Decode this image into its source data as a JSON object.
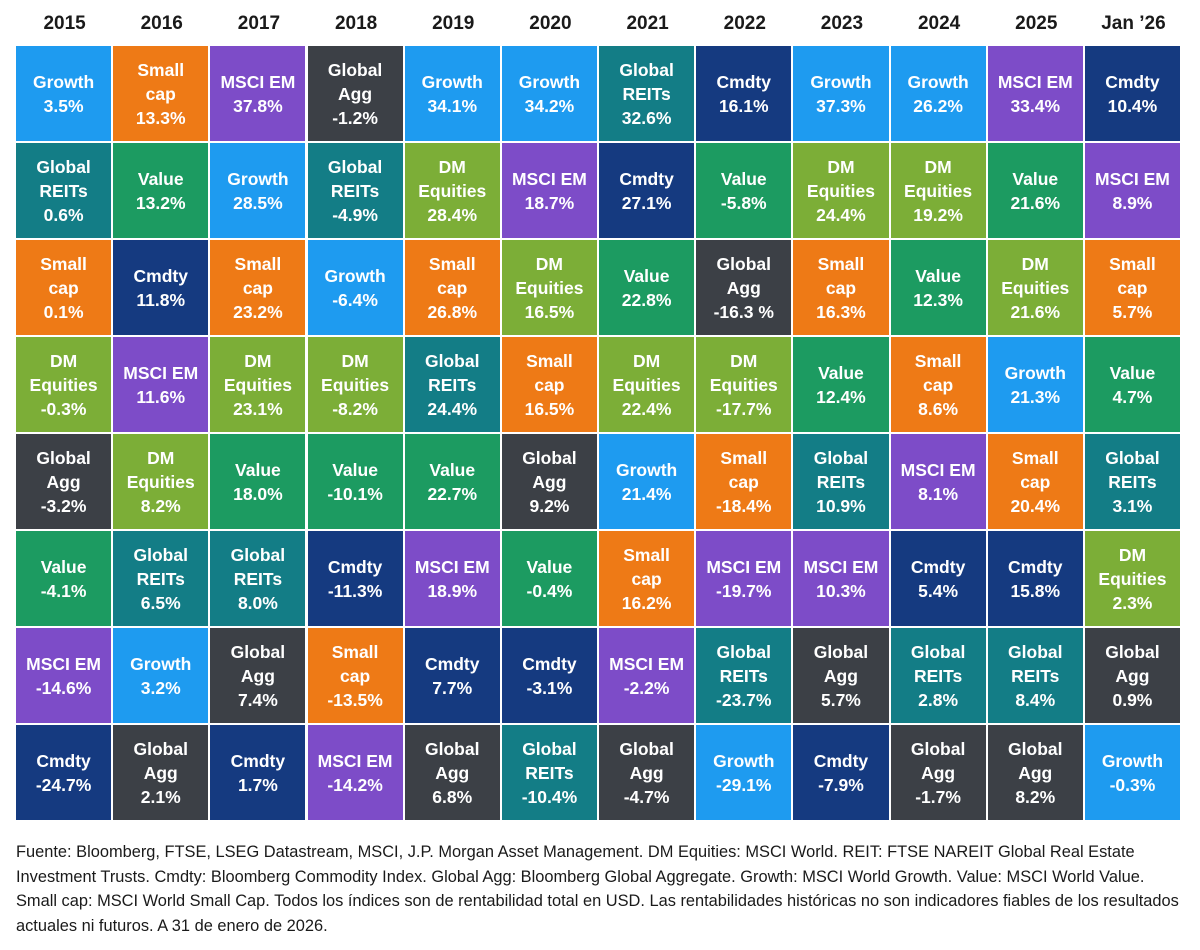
{
  "colors": {
    "Growth": "#1e9bf0",
    "Small cap": "#ee7a16",
    "MSCI EM": "#7d4cc8",
    "Global Agg": "#3c4046",
    "Global REITs": "#137d86",
    "Cmdty": "#153a80",
    "Value": "#1c9b61",
    "DM Equities": "#7cae37"
  },
  "chart_data": {
    "type": "table",
    "title": "",
    "columns": [
      "2015",
      "2016",
      "2017",
      "2018",
      "2019",
      "2020",
      "2021",
      "2022",
      "2023",
      "2024",
      "2025",
      "Jan ’26"
    ],
    "rows": [
      [
        {
          "asset": "Growth",
          "label": "Growth",
          "value": "3.5%"
        },
        {
          "asset": "Small cap",
          "label": "Small\ncap",
          "value": "13.3%"
        },
        {
          "asset": "MSCI EM",
          "label": "MSCI EM",
          "value": "37.8%"
        },
        {
          "asset": "Global Agg",
          "label": "Global\nAgg",
          "value": "-1.2%"
        },
        {
          "asset": "Growth",
          "label": "Growth",
          "value": "34.1%"
        },
        {
          "asset": "Growth",
          "label": "Growth",
          "value": "34.2%"
        },
        {
          "asset": "Global REITs",
          "label": "Global\nREITs",
          "value": "32.6%"
        },
        {
          "asset": "Cmdty",
          "label": "Cmdty",
          "value": "16.1%"
        },
        {
          "asset": "Growth",
          "label": "Growth",
          "value": "37.3%"
        },
        {
          "asset": "Growth",
          "label": "Growth",
          "value": "26.2%"
        },
        {
          "asset": "MSCI EM",
          "label": "MSCI EM",
          "value": "33.4%"
        },
        {
          "asset": "Cmdty",
          "label": "Cmdty",
          "value": "10.4%"
        }
      ],
      [
        {
          "asset": "Global REITs",
          "label": "Global\nREITs",
          "value": "0.6%"
        },
        {
          "asset": "Value",
          "label": "Value",
          "value": "13.2%"
        },
        {
          "asset": "Growth",
          "label": "Growth",
          "value": "28.5%"
        },
        {
          "asset": "Global REITs",
          "label": "Global\nREITs",
          "value": "-4.9%"
        },
        {
          "asset": "DM Equities",
          "label": "DM\nEquities",
          "value": "28.4%"
        },
        {
          "asset": "MSCI EM",
          "label": "MSCI EM",
          "value": "18.7%"
        },
        {
          "asset": "Cmdty",
          "label": "Cmdty",
          "value": "27.1%"
        },
        {
          "asset": "Value",
          "label": "Value",
          "value": "-5.8%"
        },
        {
          "asset": "DM Equities",
          "label": "DM\nEquities",
          "value": "24.4%"
        },
        {
          "asset": "DM Equities",
          "label": "DM\nEquities",
          "value": "19.2%"
        },
        {
          "asset": "Value",
          "label": "Value",
          "value": "21.6%"
        },
        {
          "asset": "MSCI EM",
          "label": "MSCI EM",
          "value": "8.9%"
        }
      ],
      [
        {
          "asset": "Small cap",
          "label": "Small\ncap",
          "value": "0.1%"
        },
        {
          "asset": "Cmdty",
          "label": "Cmdty",
          "value": "11.8%"
        },
        {
          "asset": "Small cap",
          "label": "Small\ncap",
          "value": "23.2%"
        },
        {
          "asset": "Growth",
          "label": "Growth",
          "value": "-6.4%"
        },
        {
          "asset": "Small cap",
          "label": "Small\ncap",
          "value": "26.8%"
        },
        {
          "asset": "DM Equities",
          "label": "DM\nEquities",
          "value": "16.5%"
        },
        {
          "asset": "Value",
          "label": "Value",
          "value": "22.8%"
        },
        {
          "asset": "Global Agg",
          "label": "Global\nAgg",
          "value": "-16.3 %"
        },
        {
          "asset": "Small cap",
          "label": "Small\ncap",
          "value": "16.3%"
        },
        {
          "asset": "Value",
          "label": "Value",
          "value": "12.3%"
        },
        {
          "asset": "DM Equities",
          "label": "DM\nEquities",
          "value": "21.6%"
        },
        {
          "asset": "Small cap",
          "label": "Small\ncap",
          "value": "5.7%"
        }
      ],
      [
        {
          "asset": "DM Equities",
          "label": "DM\nEquities",
          "value": "-0.3%"
        },
        {
          "asset": "MSCI EM",
          "label": "MSCI EM",
          "value": "11.6%"
        },
        {
          "asset": "DM Equities",
          "label": "DM\nEquities",
          "value": "23.1%"
        },
        {
          "asset": "DM Equities",
          "label": "DM\nEquities",
          "value": "-8.2%"
        },
        {
          "asset": "Global REITs",
          "label": "Global\nREITs",
          "value": "24.4%"
        },
        {
          "asset": "Small cap",
          "label": "Small\ncap",
          "value": "16.5%"
        },
        {
          "asset": "DM Equities",
          "label": "DM\nEquities",
          "value": "22.4%"
        },
        {
          "asset": "DM Equities",
          "label": "DM\nEquities",
          "value": "-17.7%"
        },
        {
          "asset": "Value",
          "label": "Value",
          "value": "12.4%"
        },
        {
          "asset": "Small cap",
          "label": "Small\ncap",
          "value": "8.6%"
        },
        {
          "asset": "Growth",
          "label": "Growth",
          "value": "21.3%"
        },
        {
          "asset": "Value",
          "label": "Value",
          "value": "4.7%"
        }
      ],
      [
        {
          "asset": "Global Agg",
          "label": "Global\nAgg",
          "value": "-3.2%"
        },
        {
          "asset": "DM Equities",
          "label": "DM\nEquities",
          "value": "8.2%"
        },
        {
          "asset": "Value",
          "label": "Value",
          "value": "18.0%"
        },
        {
          "asset": "Value",
          "label": "Value",
          "value": "-10.1%"
        },
        {
          "asset": "Value",
          "label": "Value",
          "value": "22.7%"
        },
        {
          "asset": "Global Agg",
          "label": "Global\nAgg",
          "value": "9.2%"
        },
        {
          "asset": "Growth",
          "label": "Growth",
          "value": "21.4%"
        },
        {
          "asset": "Small cap",
          "label": "Small\ncap",
          "value": "-18.4%"
        },
        {
          "asset": "Global REITs",
          "label": "Global\nREITs",
          "value": "10.9%"
        },
        {
          "asset": "MSCI EM",
          "label": "MSCI EM",
          "value": "8.1%"
        },
        {
          "asset": "Small cap",
          "label": "Small\ncap",
          "value": "20.4%"
        },
        {
          "asset": "Global REITs",
          "label": "Global\nREITs",
          "value": "3.1%"
        }
      ],
      [
        {
          "asset": "Value",
          "label": "Value",
          "value": "-4.1%"
        },
        {
          "asset": "Global REITs",
          "label": "Global\nREITs",
          "value": "6.5%"
        },
        {
          "asset": "Global REITs",
          "label": "Global\nREITs",
          "value": "8.0%"
        },
        {
          "asset": "Cmdty",
          "label": "Cmdty",
          "value": "-11.3%"
        },
        {
          "asset": "MSCI EM",
          "label": "MSCI EM",
          "value": "18.9%"
        },
        {
          "asset": "Value",
          "label": "Value",
          "value": "-0.4%"
        },
        {
          "asset": "Small cap",
          "label": "Small\ncap",
          "value": "16.2%"
        },
        {
          "asset": "MSCI EM",
          "label": "MSCI EM",
          "value": "-19.7%"
        },
        {
          "asset": "MSCI EM",
          "label": "MSCI EM",
          "value": "10.3%"
        },
        {
          "asset": "Cmdty",
          "label": "Cmdty",
          "value": "5.4%"
        },
        {
          "asset": "Cmdty",
          "label": "Cmdty",
          "value": "15.8%"
        },
        {
          "asset": "DM Equities",
          "label": "DM\nEquities",
          "value": "2.3%"
        }
      ],
      [
        {
          "asset": "MSCI EM",
          "label": "MSCI EM",
          "value": "-14.6%"
        },
        {
          "asset": "Growth",
          "label": "Growth",
          "value": "3.2%"
        },
        {
          "asset": "Global Agg",
          "label": "Global\nAgg",
          "value": "7.4%"
        },
        {
          "asset": "Small cap",
          "label": "Small\ncap",
          "value": "-13.5%"
        },
        {
          "asset": "Cmdty",
          "label": "Cmdty",
          "value": "7.7%"
        },
        {
          "asset": "Cmdty",
          "label": "Cmdty",
          "value": "-3.1%"
        },
        {
          "asset": "MSCI EM",
          "label": "MSCI EM",
          "value": "-2.2%"
        },
        {
          "asset": "Global REITs",
          "label": "Global\nREITs",
          "value": "-23.7%"
        },
        {
          "asset": "Global Agg",
          "label": "Global\nAgg",
          "value": "5.7%"
        },
        {
          "asset": "Global REITs",
          "label": "Global\nREITs",
          "value": "2.8%"
        },
        {
          "asset": "Global REITs",
          "label": "Global\nREITs",
          "value": "8.4%"
        },
        {
          "asset": "Global Agg",
          "label": "Global\nAgg",
          "value": "0.9%"
        }
      ],
      [
        {
          "asset": "Cmdty",
          "label": "Cmdty",
          "value": "-24.7%"
        },
        {
          "asset": "Global Agg",
          "label": "Global\nAgg",
          "value": "2.1%"
        },
        {
          "asset": "Cmdty",
          "label": "Cmdty",
          "value": "1.7%"
        },
        {
          "asset": "MSCI EM",
          "label": "MSCI EM",
          "value": "-14.2%"
        },
        {
          "asset": "Global Agg",
          "label": "Global\nAgg",
          "value": "6.8%"
        },
        {
          "asset": "Global REITs",
          "label": "Global\nREITs",
          "value": "-10.4%"
        },
        {
          "asset": "Global Agg",
          "label": "Global\nAgg",
          "value": "-4.7%"
        },
        {
          "asset": "Growth",
          "label": "Growth",
          "value": "-29.1%"
        },
        {
          "asset": "Cmdty",
          "label": "Cmdty",
          "value": "-7.9%"
        },
        {
          "asset": "Global Agg",
          "label": "Global\nAgg",
          "value": "-1.7%"
        },
        {
          "asset": "Global Agg",
          "label": "Global\nAgg",
          "value": "8.2%"
        },
        {
          "asset": "Growth",
          "label": "Growth",
          "value": "-0.3%"
        }
      ]
    ]
  },
  "footnote": "Fuente: Bloomberg, FTSE, LSEG Datastream, MSCI, J.P. Morgan Asset Management. DM Equities: MSCI World. REIT: FTSE NAREIT Global Real Estate Investment Trusts. Cmdty: Bloomberg Commodity Index. Global Agg: Bloomberg Global Aggregate. Growth: MSCI World Growth. Value: MSCI World Value. Small cap: MSCI World Small Cap. Todos los índices son de rentabilidad total en USD. Las rentabilidades históricas no son indicadores fiables de los resultados actuales ni futuros. A 31 de enero de 2026."
}
